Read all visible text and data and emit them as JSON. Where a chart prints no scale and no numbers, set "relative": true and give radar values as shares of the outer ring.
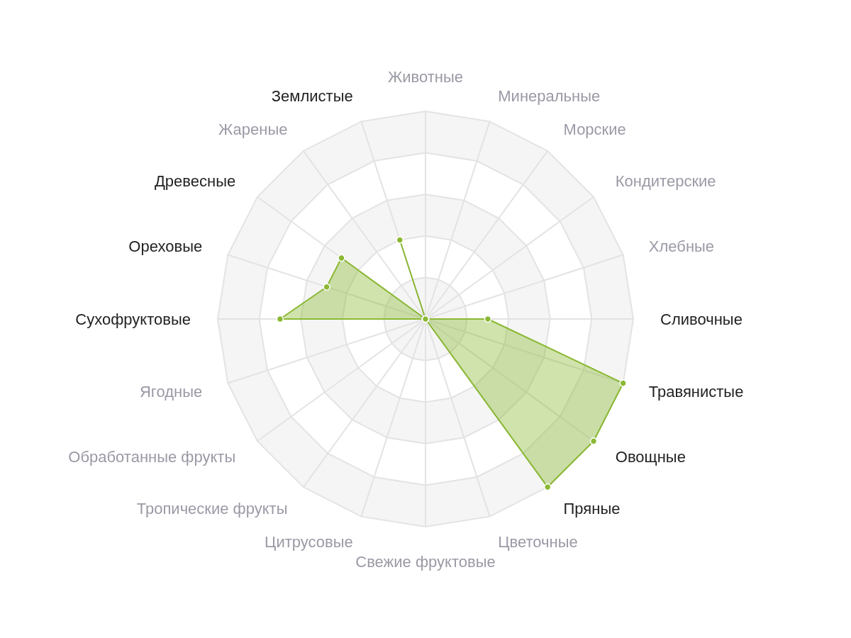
{
  "chart_data": {
    "type": "radar",
    "relative": true,
    "categories": [
      "Животные",
      "Минеральные",
      "Морские",
      "Кондитерские",
      "Хлебные",
      "Сливочные",
      "Травянистые",
      "Овощные",
      "Пряные",
      "Цветочные",
      "Свежие фруктовые",
      "Цитрусовые",
      "Тропические фрукты",
      "Обработанные фрукты",
      "Ягодные",
      "Сухофруктовые",
      "Ореховые",
      "Древесные",
      "Жареные",
      "Землистые"
    ],
    "series": [
      {
        "color": "#8ab833",
        "values": [
          0,
          0,
          0,
          0,
          0,
          0.3,
          1,
          1,
          1,
          0,
          0,
          0,
          0,
          0,
          0,
          0.7,
          0.5,
          0.5,
          0,
          0.4
        ]
      }
    ],
    "marker": "circle"
  }
}
